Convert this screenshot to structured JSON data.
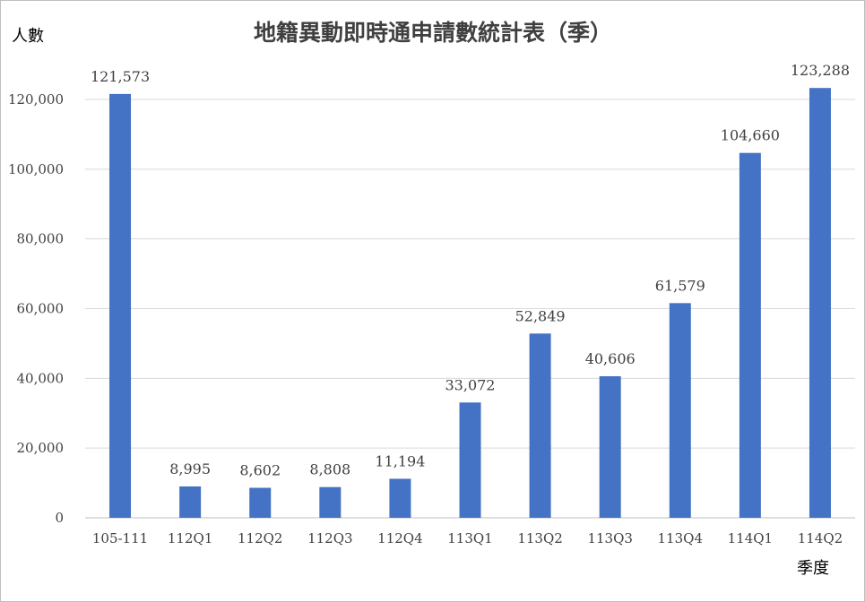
{
  "chart_data": {
    "type": "bar",
    "title": "地籍異動即時通申請數統計表（季）",
    "ylabel": "人數",
    "xlabel": "季度",
    "categories": [
      "105-111",
      "112Q1",
      "112Q2",
      "112Q3",
      "112Q4",
      "113Q1",
      "113Q2",
      "113Q3",
      "113Q4",
      "114Q1",
      "114Q2"
    ],
    "values": [
      121573,
      8995,
      8602,
      8808,
      11194,
      33072,
      52849,
      40606,
      61579,
      104660,
      123288
    ],
    "data_labels": [
      "121,573",
      "8,995",
      "8,602",
      "8,808",
      "11,194",
      "33,072",
      "52,849",
      "40,606",
      "61,579",
      "104,660",
      "123,288"
    ],
    "yticks": [
      0,
      20000,
      40000,
      60000,
      80000,
      100000,
      120000
    ],
    "ytick_labels": [
      "0",
      "20,000",
      "40,000",
      "60,000",
      "80,000",
      "100,000",
      "120,000"
    ],
    "ylim": [
      0,
      120000
    ],
    "grid": true,
    "legend": "none",
    "bar_color": "#4472c4"
  }
}
